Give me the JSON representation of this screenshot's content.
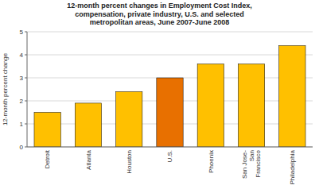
{
  "chart_data": {
    "type": "bar",
    "title": "12-month percent changes in Employment Cost Index,\ncompensation, private industry, U.S. and selected\nmetropolitan areas, June 2007-June 2008",
    "ylabel": "12-month percent change",
    "categories": [
      "Detroit",
      "Atlanta",
      "Houston",
      "U.S.",
      "Phoenix",
      "San Jose-\nSan\nFrancisco",
      "Philadelphia"
    ],
    "values": [
      1.5,
      1.9,
      2.4,
      3.0,
      3.6,
      3.6,
      4.4
    ],
    "colors": [
      "#FFC000",
      "#FFC000",
      "#FFC000",
      "#E87000",
      "#FFC000",
      "#FFC000",
      "#FFC000"
    ],
    "ylim": [
      0,
      5
    ],
    "yticks": [
      0,
      1,
      2,
      3,
      4,
      5
    ],
    "grid": true
  }
}
